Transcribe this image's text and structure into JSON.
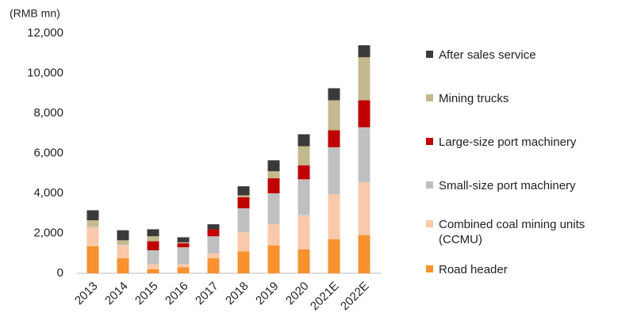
{
  "chart_data": {
    "type": "stacked_bar",
    "y_label": "(RMB mn)",
    "categories": [
      "2013",
      "2014",
      "2015",
      "2016",
      "2017",
      "2018",
      "2019",
      "2020",
      "2021E",
      "2022E"
    ],
    "series": [
      {
        "name": "Road header",
        "color": "#f7922e",
        "values": [
          1350,
          750,
          200,
          300,
          750,
          1100,
          1400,
          1200,
          1700,
          1900
        ]
      },
      {
        "name": "Combined coal mining units (CCMU)",
        "color": "#f9c9a9",
        "values": [
          950,
          650,
          250,
          150,
          250,
          950,
          1050,
          1700,
          2250,
          2650
        ]
      },
      {
        "name": "Small-size port machinery",
        "color": "#c0c0c0",
        "values": [
          50,
          50,
          700,
          850,
          850,
          1200,
          1550,
          1800,
          2350,
          2750
        ]
      },
      {
        "name": "Large-size port machinery",
        "color": "#c00000",
        "values": [
          0,
          0,
          450,
          200,
          350,
          550,
          750,
          700,
          850,
          1350
        ]
      },
      {
        "name": "Mining trucks",
        "color": "#c4b88e",
        "values": [
          300,
          200,
          250,
          50,
          0,
          100,
          350,
          950,
          1500,
          2150
        ]
      },
      {
        "name": "After sales service",
        "color": "#3a3a3a",
        "values": [
          500,
          500,
          350,
          250,
          250,
          450,
          550,
          600,
          600,
          600
        ]
      }
    ],
    "ylim": [
      0,
      12000
    ],
    "yticks": [
      0,
      {
        "value": 2000,
        "label": "2,000"
      },
      {
        "value": 4000,
        "label": "4,000"
      },
      {
        "value": 6000,
        "label": "6,000"
      },
      {
        "value": 8000,
        "label": "8,000"
      },
      {
        "value": 10000,
        "label": "10,000"
      },
      {
        "value": 12000,
        "label": "12,000"
      }
    ],
    "grid": false,
    "legend": "right"
  }
}
